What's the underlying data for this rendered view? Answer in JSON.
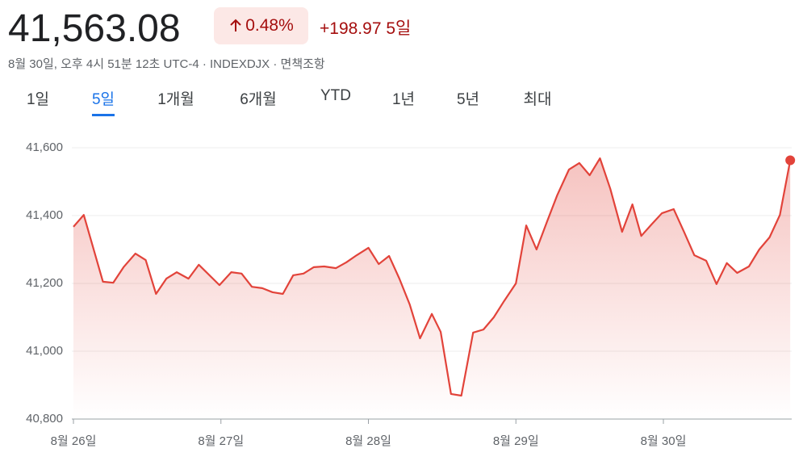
{
  "header": {
    "price": "41,563.08",
    "change_percent": "0.48%",
    "change": "+198.97",
    "period": "5일",
    "subtitle": "8월 30일, 오후 4시 51분 12초 UTC-4 · INDEXDJX · 면책조항"
  },
  "tabs": {
    "items": [
      "1일",
      "5일",
      "1개월",
      "6개월",
      "YTD",
      "1년",
      "5년",
      "최대"
    ],
    "selected": 1
  },
  "chart_data": {
    "type": "line",
    "x": [
      0,
      0.07,
      0.2,
      0.27,
      0.34,
      0.42,
      0.49,
      0.56,
      0.63,
      0.7,
      0.78,
      0.85,
      0.99,
      1.07,
      1.14,
      1.21,
      1.28,
      1.35,
      1.42,
      1.49,
      1.56,
      1.63,
      1.7,
      1.78,
      1.85,
      1.92,
      2.0,
      2.07,
      2.14,
      2.21,
      2.28,
      2.35,
      2.43,
      2.49,
      2.56,
      2.63,
      2.71,
      2.78,
      2.85,
      2.92,
      3.0,
      3.07,
      3.14,
      3.21,
      3.28,
      3.36,
      3.43,
      3.5,
      3.57,
      3.64,
      3.72,
      3.79,
      3.85,
      3.92,
      3.99,
      4.07,
      4.14,
      4.21,
      4.29,
      4.36,
      4.43,
      4.5,
      4.58,
      4.65,
      4.72,
      4.79,
      4.86
    ],
    "series": [
      {
        "name": "INDEXDJX",
        "color": "#e2433a",
        "values": [
          41367,
          41402,
          41205,
          41202,
          41248,
          41288,
          41269,
          41169,
          41214,
          41233,
          41214,
          41255,
          41195,
          41233,
          41229,
          41190,
          41186,
          41174,
          41169,
          41224,
          41229,
          41248,
          41250,
          41245,
          41262,
          41283,
          41305,
          41257,
          41281,
          41214,
          41138,
          41038,
          41110,
          41057,
          40874,
          40869,
          41055,
          41064,
          41100,
          41148,
          41200,
          41371,
          41300,
          41381,
          41460,
          41536,
          41555,
          41519,
          41569,
          41479,
          41352,
          41433,
          41340,
          41374,
          41407,
          41419,
          41352,
          41283,
          41267,
          41198,
          41260,
          41231,
          41250,
          41300,
          41336,
          41402,
          41563
        ]
      }
    ],
    "xlim": [
      0,
      4.87
    ],
    "xticks": [
      {
        "value": 0,
        "label": "8월 26일"
      },
      {
        "value": 1,
        "label": "8월 27일"
      },
      {
        "value": 2,
        "label": "8월 28일"
      },
      {
        "value": 3,
        "label": "8월 29일"
      },
      {
        "value": 4,
        "label": "8월 30일"
      }
    ],
    "ylim": [
      40800,
      41600
    ],
    "yticks": [
      {
        "value": 40800,
        "label": "40,800"
      },
      {
        "value": 41000,
        "label": "41,000"
      },
      {
        "value": 41200,
        "label": "41,200"
      },
      {
        "value": 41400,
        "label": "41,400"
      },
      {
        "value": 41600,
        "label": "41,600"
      }
    ],
    "grid": true
  }
}
